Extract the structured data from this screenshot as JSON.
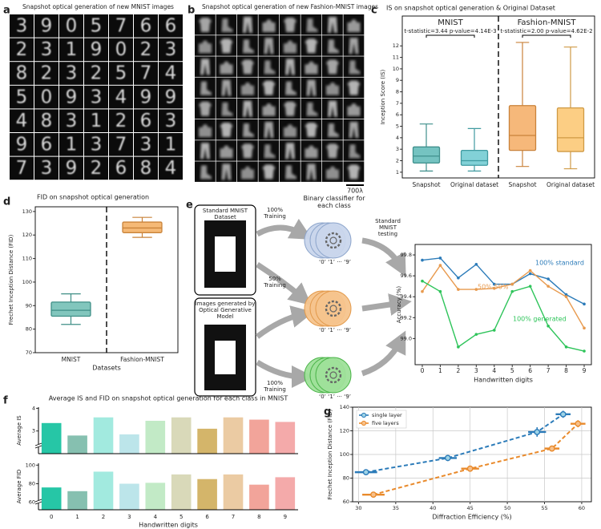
{
  "panel_labels": [
    "a",
    "b",
    "c",
    "d",
    "e",
    "f",
    "g"
  ],
  "panel_a": {
    "title": "Snapshot optical generation of new MNIST images",
    "digits": [
      [
        "3",
        "9",
        "0",
        "5",
        "7",
        "6",
        "6"
      ],
      [
        "2",
        "3",
        "1",
        "9",
        "0",
        "2",
        "3"
      ],
      [
        "8",
        "2",
        "3",
        "2",
        "5",
        "7",
        "4"
      ],
      [
        "5",
        "0",
        "9",
        "3",
        "4",
        "9",
        "9"
      ],
      [
        "4",
        "8",
        "3",
        "1",
        "2",
        "6",
        "3"
      ],
      [
        "9",
        "6",
        "1",
        "3",
        "7",
        "3",
        "1"
      ],
      [
        "7",
        "3",
        "9",
        "2",
        "6",
        "8",
        "4"
      ]
    ]
  },
  "panel_b": {
    "title": "Snapshot optical generation of new Fashion-MNIST images",
    "scale_bar": "700λ"
  },
  "panel_e_diagram": {
    "standard_dataset": "Standard MNIST Dataset",
    "generated_dataset": "Images generated by Optical Generative Model",
    "training": [
      "100% Training",
      "50% Training",
      "100% Training"
    ],
    "classifier": "Binary classifier for each class",
    "class_labels": [
      "‘0’ ‘1’ ··· ‘9’",
      "‘0’ ‘1’ ··· ‘9’",
      "‘0’ ‘1’ ··· ‘9’"
    ],
    "testing": "Standard MNIST testing"
  },
  "chart_data": [
    {
      "type": "box",
      "title": "IS on snapshot optical generation & Original Dataset",
      "y_label": "Inception Score (IS)",
      "categories": [
        "Snapshot",
        "Original dataset",
        "Snapshot",
        "Original dataset"
      ],
      "groups": [
        {
          "name": "MNIST",
          "annotation": "t-statistic=3.44 p-value=4.14E-3"
        },
        {
          "name": "Fashion-MNIST",
          "annotation": "t-statistic=2.00 p-value=4.62E-2"
        }
      ],
      "boxes": [
        {
          "low": 1.1,
          "q1": 1.8,
          "median": 2.4,
          "q3": 3.2,
          "high": 5.2
        },
        {
          "low": 1.1,
          "q1": 1.6,
          "median": 2.0,
          "q3": 2.9,
          "high": 4.8
        },
        {
          "low": 1.5,
          "q1": 2.9,
          "median": 4.2,
          "q3": 6.8,
          "high": 12.3
        },
        {
          "low": 1.3,
          "q1": 2.8,
          "median": 4.0,
          "q3": 6.6,
          "high": 11.9
        }
      ],
      "colors": [
        "#5db8b6",
        "#6cc9d0",
        "#f5ab63",
        "#fbc66f"
      ],
      "edge_colors": [
        "#3f8f8c",
        "#3f9aa0",
        "#c9823a",
        "#cf9a45"
      ],
      "ylim": [
        0.5,
        14.6
      ],
      "yticks": [
        1,
        2,
        3,
        4,
        5,
        6,
        7,
        8,
        9,
        10,
        11,
        12
      ]
    },
    {
      "type": "box",
      "title": "FID on snapshot optical generation",
      "y_label": "Frechet Inception Distance (FID)",
      "x_label": "Datasets",
      "categories": [
        "MNIST",
        "Fashion-MNIST"
      ],
      "boxes": [
        {
          "low": 82,
          "q1": 85.5,
          "median": 88,
          "q3": 91.5,
          "high": 95
        },
        {
          "low": 119,
          "q1": 121,
          "median": 123,
          "q3": 125.5,
          "high": 127.5
        }
      ],
      "colors": [
        "#6cbcb2",
        "#f3ad5e"
      ],
      "edge_colors": [
        "#3f8f86",
        "#c9833a"
      ],
      "ylim": [
        70,
        132
      ],
      "yticks": [
        70,
        80,
        90,
        100,
        110,
        120,
        130
      ]
    },
    {
      "type": "line",
      "x_label": "Handwritten digits",
      "y_label": "Accuracy (%)",
      "x": [
        0,
        1,
        2,
        3,
        4,
        5,
        6,
        7,
        8,
        9
      ],
      "xlim": [
        -0.4,
        9.4
      ],
      "xticks": [
        0,
        1,
        2,
        3,
        4,
        5,
        6,
        7,
        8,
        9
      ],
      "ylim": [
        98.75,
        99.9
      ],
      "yticks": [
        {
          "value": 99,
          "label": "99.0"
        },
        99.2,
        99.4,
        99.6,
        99.8
      ],
      "series": [
        {
          "name": "100% standard",
          "color": "#2b7bb9",
          "values": [
            99.75,
            99.77,
            99.58,
            99.71,
            99.52,
            99.52,
            99.62,
            99.57,
            99.42,
            99.33
          ]
        },
        {
          "name": "50%-50%",
          "color": "#e89a4e",
          "values": [
            99.45,
            99.7,
            99.47,
            99.47,
            99.48,
            99.52,
            99.65,
            99.5,
            99.4,
            99.1
          ]
        },
        {
          "name": "100% generated",
          "color": "#2ec45a",
          "values": [
            99.55,
            99.45,
            98.92,
            99.04,
            99.08,
            99.45,
            99.5,
            99.12,
            98.92,
            98.88
          ]
        }
      ]
    },
    {
      "type": "bar",
      "title": "Average IS and FID on snapshot optical generation for each class in MNIST",
      "y_label": "Average IS",
      "values": [
        3.35,
        2.8,
        3.6,
        2.85,
        3.45,
        3.6,
        3.1,
        3.6,
        3.5,
        3.4
      ],
      "colors": [
        "#26c6a6",
        "#86c0b0",
        "#a2eadf",
        "#bce5ea",
        "#c2eac6",
        "#d9d9b9",
        "#d4b56a",
        "#ebcba3",
        "#f2a49a",
        "#f4aaaa"
      ],
      "ylim": [
        2.0,
        4.05
      ],
      "yticks": [
        3,
        4
      ]
    },
    {
      "type": "bar",
      "y_label": "Average FID",
      "x_label": "Handwritten digits",
      "categories": [
        "0",
        "1",
        "2",
        "3",
        "4",
        "5",
        "6",
        "7",
        "8",
        "9"
      ],
      "values": [
        76,
        72,
        93,
        80,
        81,
        90,
        85,
        90,
        79,
        87
      ],
      "colors": [
        "#26c6a6",
        "#86c0b0",
        "#a2eadf",
        "#bce5ea",
        "#c2eac6",
        "#d9d9b9",
        "#d4b56a",
        "#ebcba3",
        "#f2a49a",
        "#f4aaaa"
      ],
      "ylim": [
        52,
        102
      ],
      "yticks": [
        60,
        80,
        100
      ]
    },
    {
      "type": "scatter",
      "x_label": "Diffraction Efficiency (%)",
      "y_label": "Frechet Inception Distance (FID)",
      "xlim": [
        29.2,
        61.3
      ],
      "xticks": [
        30,
        35,
        40,
        45,
        50,
        55,
        60
      ],
      "ylim": [
        60,
        140
      ],
      "yticks": [
        60,
        80,
        100,
        120,
        140
      ],
      "grid": true,
      "legend": "upper left",
      "series": [
        {
          "name": "single layer",
          "color": "#2b7bb9",
          "marker_color": "#9ed3e6",
          "x": [
            31,
            42,
            54,
            57.5
          ],
          "values": [
            85,
            97,
            119,
            134
          ],
          "xerr": [
            1.5,
            1.2,
            1.2,
            1.0
          ],
          "yerr": [
            2,
            2.5,
            4,
            3
          ]
        },
        {
          "name": "five layers",
          "color": "#e98a2b",
          "marker_color": "#f7c08a",
          "x": [
            32,
            45,
            56,
            59.5
          ],
          "values": [
            66,
            88,
            105,
            126
          ],
          "xerr": [
            1.5,
            1.2,
            1.0,
            1.0
          ],
          "yerr": [
            1.5,
            2.5,
            2.5,
            3
          ]
        }
      ]
    }
  ]
}
